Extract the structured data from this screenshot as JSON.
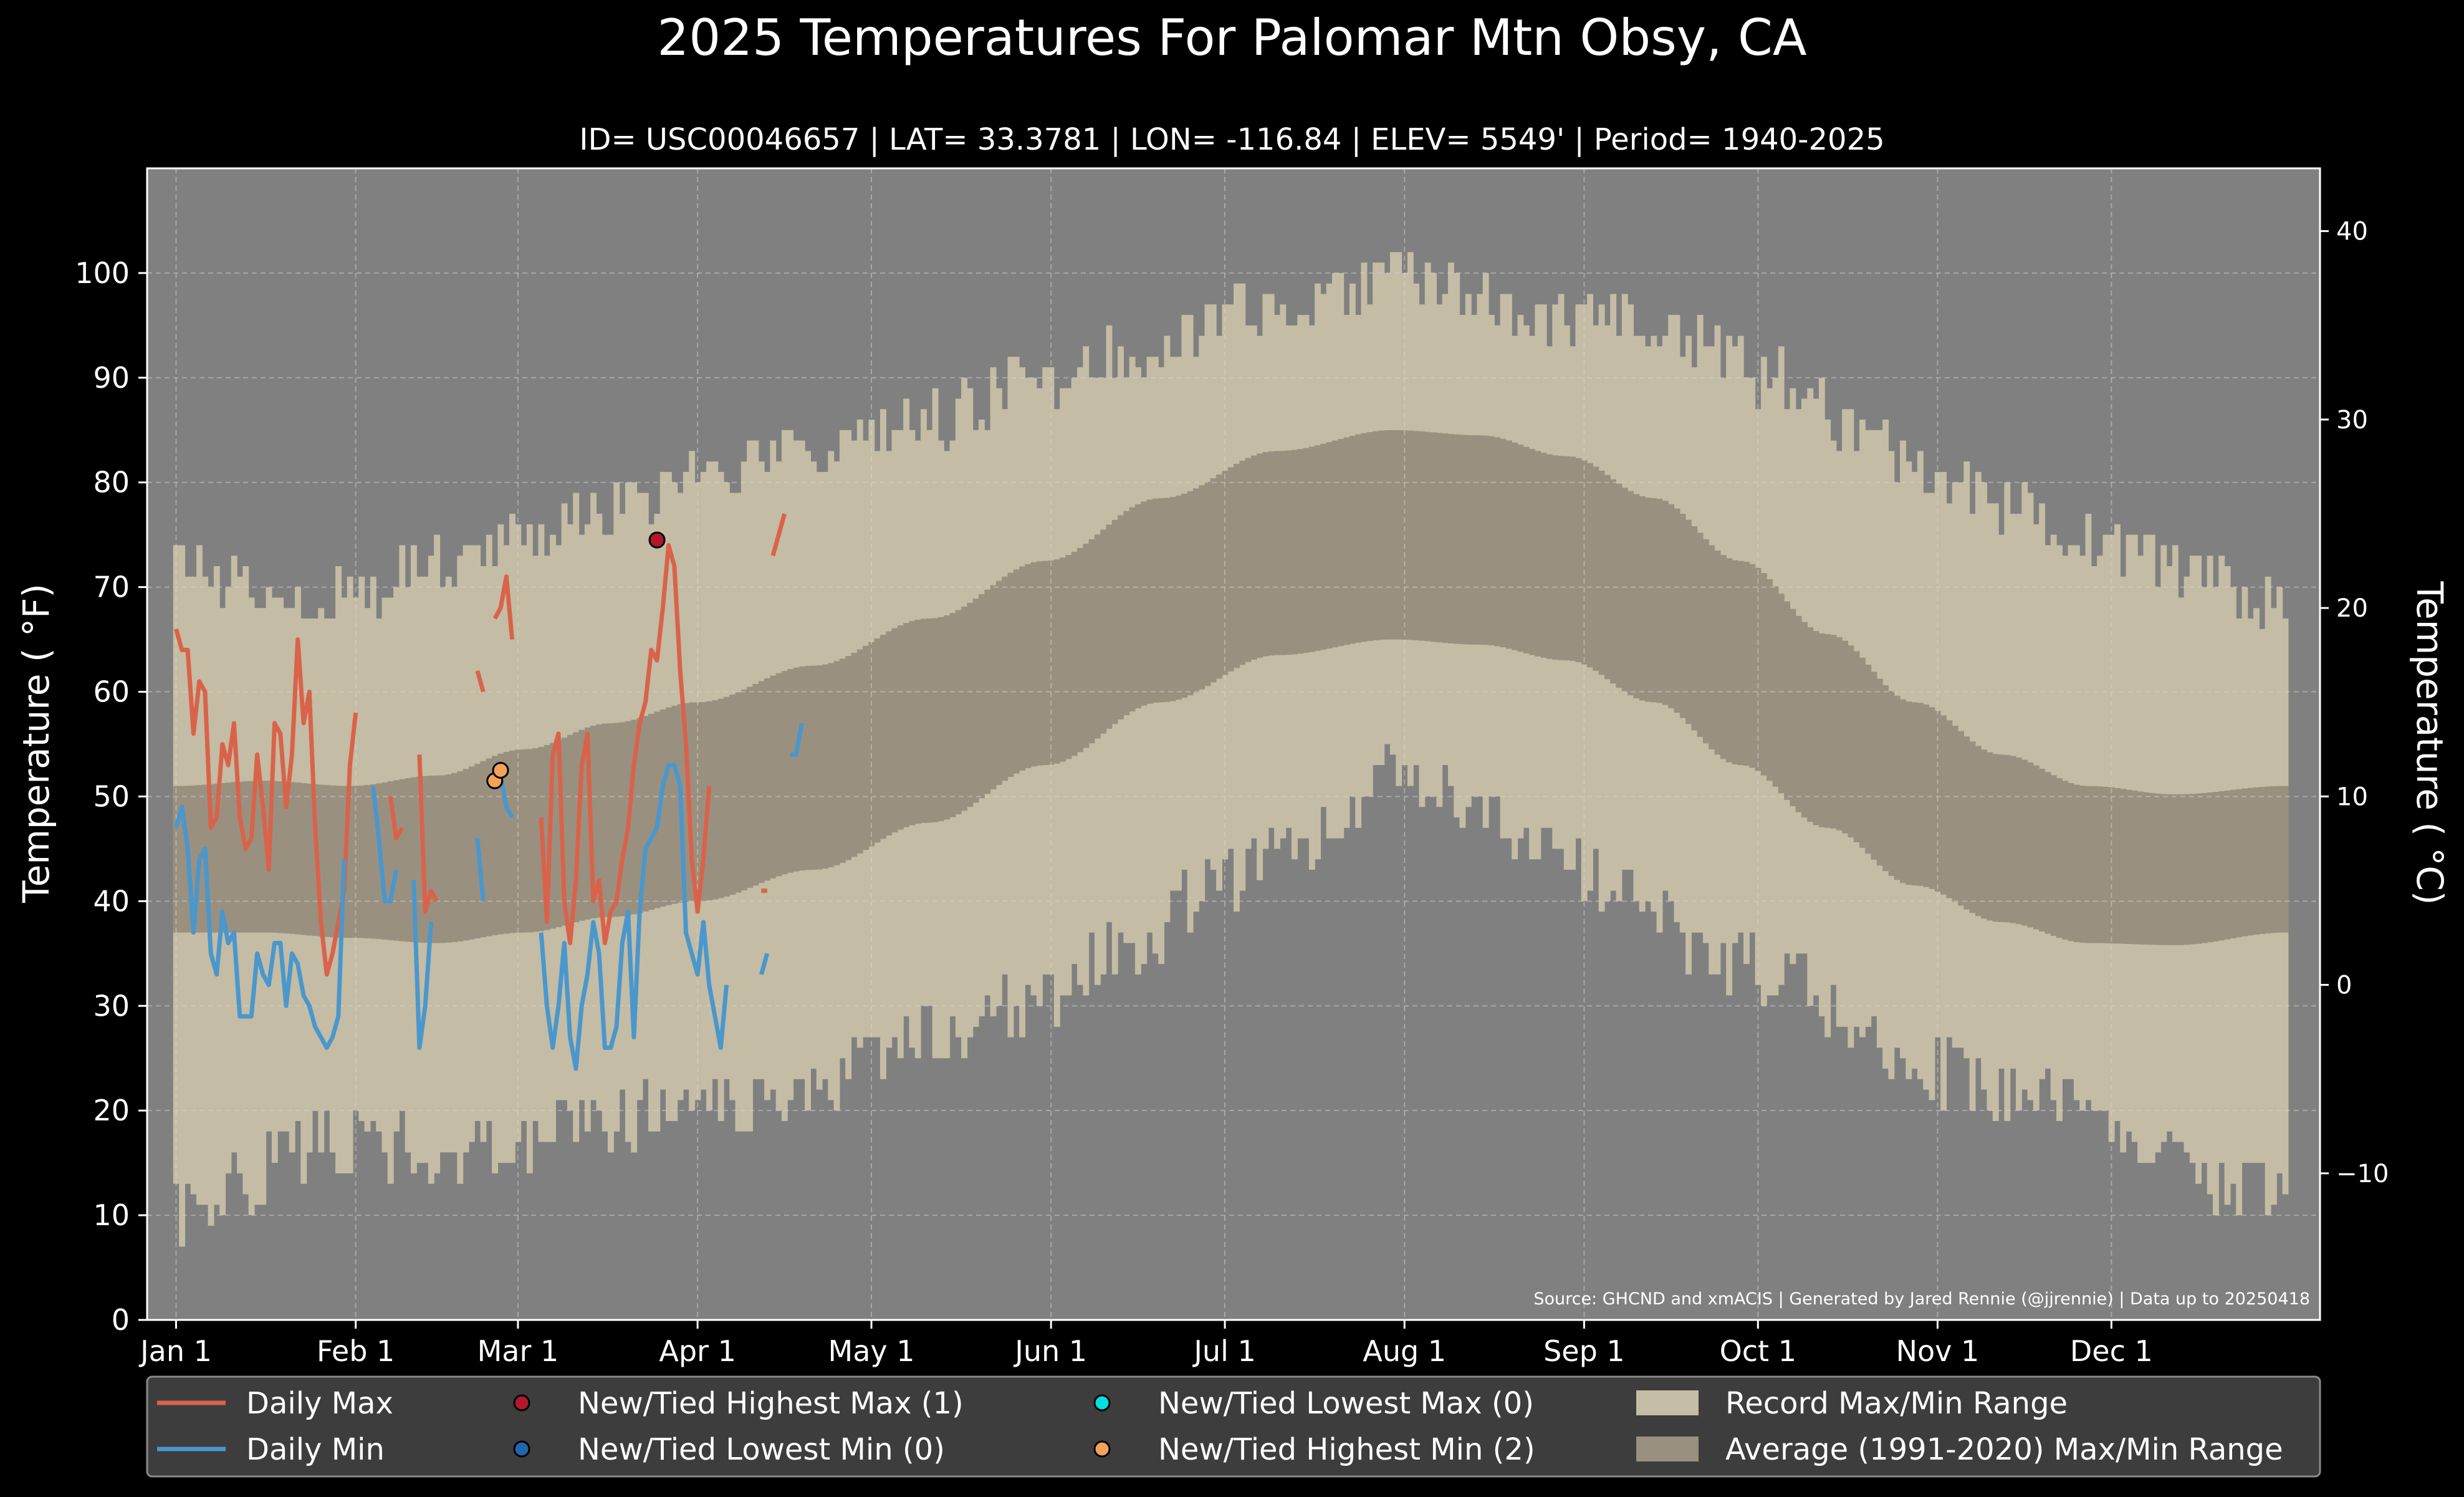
{
  "chart_data": {
    "type": "line",
    "title": "2025 Temperatures For Palomar Mtn Obsy, CA",
    "subtitle": "ID= USC00046657 | LAT= 33.3781 | LON= -116.84 | ELEV= 5549' | Period= 1940-2025",
    "ylabel": "Temperature ($^\\circ$F)",
    "ylabel_display": "Temperature ( °F)",
    "ylabel_right_display": "Temperature ( °C)",
    "source": "Source: GHCND and xmACIS | Generated by Jared Rennie (@jjrennie) | Data up to 20250418",
    "ylim": [
      0,
      110
    ],
    "ylim_c": [
      -17.78,
      43.33
    ],
    "yticks": [
      0,
      10,
      20,
      30,
      40,
      50,
      60,
      70,
      80,
      90,
      100
    ],
    "yticks_c": [
      -10,
      0,
      10,
      20,
      30,
      40
    ],
    "xlim": [
      -5,
      370
    ],
    "xticks": [
      {
        "day": 0,
        "label": "Jan 1"
      },
      {
        "day": 31,
        "label": "Feb 1"
      },
      {
        "day": 59,
        "label": "Mar 1"
      },
      {
        "day": 90,
        "label": "Apr 1"
      },
      {
        "day": 120,
        "label": "May 1"
      },
      {
        "day": 151,
        "label": "Jun 1"
      },
      {
        "day": 181,
        "label": "Jul 1"
      },
      {
        "day": 212,
        "label": "Aug 1"
      },
      {
        "day": 243,
        "label": "Sep 1"
      },
      {
        "day": 273,
        "label": "Oct 1"
      },
      {
        "day": 304,
        "label": "Nov 1"
      },
      {
        "day": 334,
        "label": "Dec 1"
      }
    ],
    "grid": true,
    "legend_position": "bottom",
    "colors": {
      "background": "#808080",
      "record_band": "#c4bca4",
      "normal_band": "#9a9080",
      "daily_max": "#d9634a",
      "daily_min": "#4a97cc",
      "new_high_max": "#b2182b",
      "new_low_min": "#2166ac",
      "new_low_max": "#00e0e0",
      "new_high_min": "#f4a259"
    },
    "record_max_keypoints": [
      [
        0,
        72
      ],
      [
        15,
        70
      ],
      [
        30,
        69
      ],
      [
        45,
        73
      ],
      [
        59,
        75
      ],
      [
        75,
        77
      ],
      [
        90,
        80
      ],
      [
        110,
        83
      ],
      [
        130,
        86
      ],
      [
        150,
        90
      ],
      [
        165,
        93
      ],
      [
        185,
        96
      ],
      [
        200,
        98
      ],
      [
        215,
        100
      ],
      [
        230,
        97
      ],
      [
        245,
        95
      ],
      [
        260,
        94
      ],
      [
        275,
        90
      ],
      [
        290,
        85
      ],
      [
        305,
        80
      ],
      [
        320,
        77
      ],
      [
        335,
        74
      ],
      [
        350,
        71
      ],
      [
        364,
        68
      ]
    ],
    "record_min_keypoints": [
      [
        0,
        10
      ],
      [
        10,
        13
      ],
      [
        25,
        17
      ],
      [
        45,
        16
      ],
      [
        60,
        17
      ],
      [
        75,
        19
      ],
      [
        90,
        20
      ],
      [
        110,
        23
      ],
      [
        130,
        27
      ],
      [
        150,
        31
      ],
      [
        165,
        36
      ],
      [
        180,
        42
      ],
      [
        195,
        46
      ],
      [
        210,
        52
      ],
      [
        220,
        50
      ],
      [
        235,
        46
      ],
      [
        250,
        41
      ],
      [
        265,
        35
      ],
      [
        280,
        32
      ],
      [
        295,
        26
      ],
      [
        310,
        23
      ],
      [
        325,
        22
      ],
      [
        340,
        16
      ],
      [
        355,
        12
      ],
      [
        364,
        13
      ]
    ],
    "normal_max_keypoints": [
      [
        0,
        51
      ],
      [
        15,
        51.5
      ],
      [
        30,
        51
      ],
      [
        45,
        52
      ],
      [
        60,
        54.5
      ],
      [
        75,
        57
      ],
      [
        90,
        59
      ],
      [
        110,
        62.5
      ],
      [
        130,
        67
      ],
      [
        150,
        72.5
      ],
      [
        170,
        78.5
      ],
      [
        190,
        83
      ],
      [
        210,
        85
      ],
      [
        225,
        84.5
      ],
      [
        240,
        82.5
      ],
      [
        255,
        78.5
      ],
      [
        270,
        72.5
      ],
      [
        285,
        65.5
      ],
      [
        300,
        59
      ],
      [
        315,
        54
      ],
      [
        330,
        51
      ],
      [
        345,
        50.2
      ],
      [
        364,
        51
      ]
    ],
    "normal_min_keypoints": [
      [
        0,
        37
      ],
      [
        15,
        37
      ],
      [
        30,
        36.5
      ],
      [
        45,
        36
      ],
      [
        60,
        37
      ],
      [
        75,
        38.5
      ],
      [
        90,
        40
      ],
      [
        110,
        43
      ],
      [
        130,
        47.5
      ],
      [
        150,
        53
      ],
      [
        170,
        59
      ],
      [
        190,
        63.5
      ],
      [
        210,
        65
      ],
      [
        225,
        64.5
      ],
      [
        240,
        63
      ],
      [
        255,
        59
      ],
      [
        270,
        53
      ],
      [
        285,
        47
      ],
      [
        300,
        41.5
      ],
      [
        315,
        38
      ],
      [
        330,
        36
      ],
      [
        345,
        35.8
      ],
      [
        364,
        37
      ]
    ],
    "series": [
      {
        "name": "Daily Max",
        "color": "#d9634a",
        "values": [
          66,
          64,
          64,
          56,
          61,
          60,
          47,
          48,
          55,
          53,
          57,
          48,
          45,
          46,
          54,
          49,
          43,
          57,
          56,
          49,
          54,
          65,
          57,
          60,
          47,
          38,
          33,
          35,
          38,
          41,
          53,
          58,
          null,
          null,
          null,
          null,
          null,
          50,
          46,
          47,
          null,
          null,
          54,
          39,
          41,
          40,
          null,
          null,
          null,
          null,
          null,
          null,
          62,
          60,
          null,
          67,
          68,
          71,
          65,
          null,
          null,
          null,
          null,
          48,
          38,
          54,
          56,
          40,
          36,
          42,
          53,
          56,
          40,
          42,
          36,
          39,
          40,
          44,
          47,
          53,
          57,
          59,
          64,
          63,
          68,
          74,
          72,
          62,
          55,
          44,
          39,
          44,
          51,
          null,
          null,
          null,
          null,
          null,
          null,
          null,
          null,
          null,
          null,
          73,
          75,
          77
        ]
      },
      {
        "name": "Daily Min",
        "color": "#4a97cc",
        "values": [
          47,
          49,
          45,
          37,
          44,
          45,
          35,
          33,
          39,
          36,
          37,
          29,
          29,
          29,
          35,
          33,
          32,
          36,
          36,
          30,
          35,
          34,
          31,
          30,
          28,
          27,
          26,
          27,
          29,
          44,
          null,
          null,
          null,
          null,
          51,
          46,
          40,
          40,
          43,
          null,
          null,
          42,
          26,
          30,
          38,
          null,
          null,
          null,
          null,
          null,
          null,
          null,
          46,
          40,
          null,
          52,
          52,
          49,
          48,
          null,
          null,
          null,
          null,
          37,
          30,
          26,
          30,
          36,
          27,
          24,
          30,
          33,
          38,
          35,
          26,
          26,
          28,
          36,
          39,
          27,
          39,
          45,
          46,
          47,
          51,
          53,
          53,
          51,
          37,
          35,
          33,
          38,
          32,
          29,
          26,
          32,
          null,
          null,
          null,
          null,
          null,
          null,
          null,
          null,
          null,
          null,
          54,
          54,
          57,
          null,
          null,
          null,
          null,
          null,
          null,
          null,
          null,
          null,
          null,
          null,
          null,
          null,
          null,
          null,
          null,
          null,
          null,
          null,
          null,
          null,
          null,
          null,
          null,
          null,
          null,
          null,
          null,
          null,
          null,
          null,
          null,
          null,
          null
        ]
      }
    ],
    "extra_segments": [
      {
        "series": "Daily Max",
        "points": [
          [
            101,
            41
          ],
          [
            102,
            41
          ]
        ]
      },
      {
        "series": "Daily Min",
        "points": [
          [
            101,
            33
          ],
          [
            102,
            35
          ]
        ]
      }
    ],
    "markers": [
      {
        "type": "new_high_max",
        "day": 83,
        "value": 74.5
      },
      {
        "type": "new_high_min",
        "day": 55,
        "value": 51.5
      },
      {
        "type": "new_high_min",
        "day": 56,
        "value": 52.5
      }
    ],
    "legend": [
      {
        "key": "daily_max",
        "kind": "line",
        "label": "Daily Max"
      },
      {
        "key": "daily_min",
        "kind": "line",
        "label": "Daily Min"
      },
      {
        "key": "new_high_max",
        "kind": "dot",
        "label": "New/Tied Highest Max (1)"
      },
      {
        "key": "new_low_min",
        "kind": "dot",
        "label": "New/Tied Lowest Min (0)"
      },
      {
        "key": "new_low_max",
        "kind": "dot",
        "label": "New/Tied Lowest Max (0)"
      },
      {
        "key": "new_high_min",
        "kind": "dot",
        "label": "New/Tied Highest Min (2)"
      },
      {
        "key": "record_band",
        "kind": "box",
        "label": "Record Max/Min Range"
      },
      {
        "key": "normal_band",
        "kind": "box",
        "label": "Average (1991-2020) Max/Min Range"
      }
    ]
  }
}
